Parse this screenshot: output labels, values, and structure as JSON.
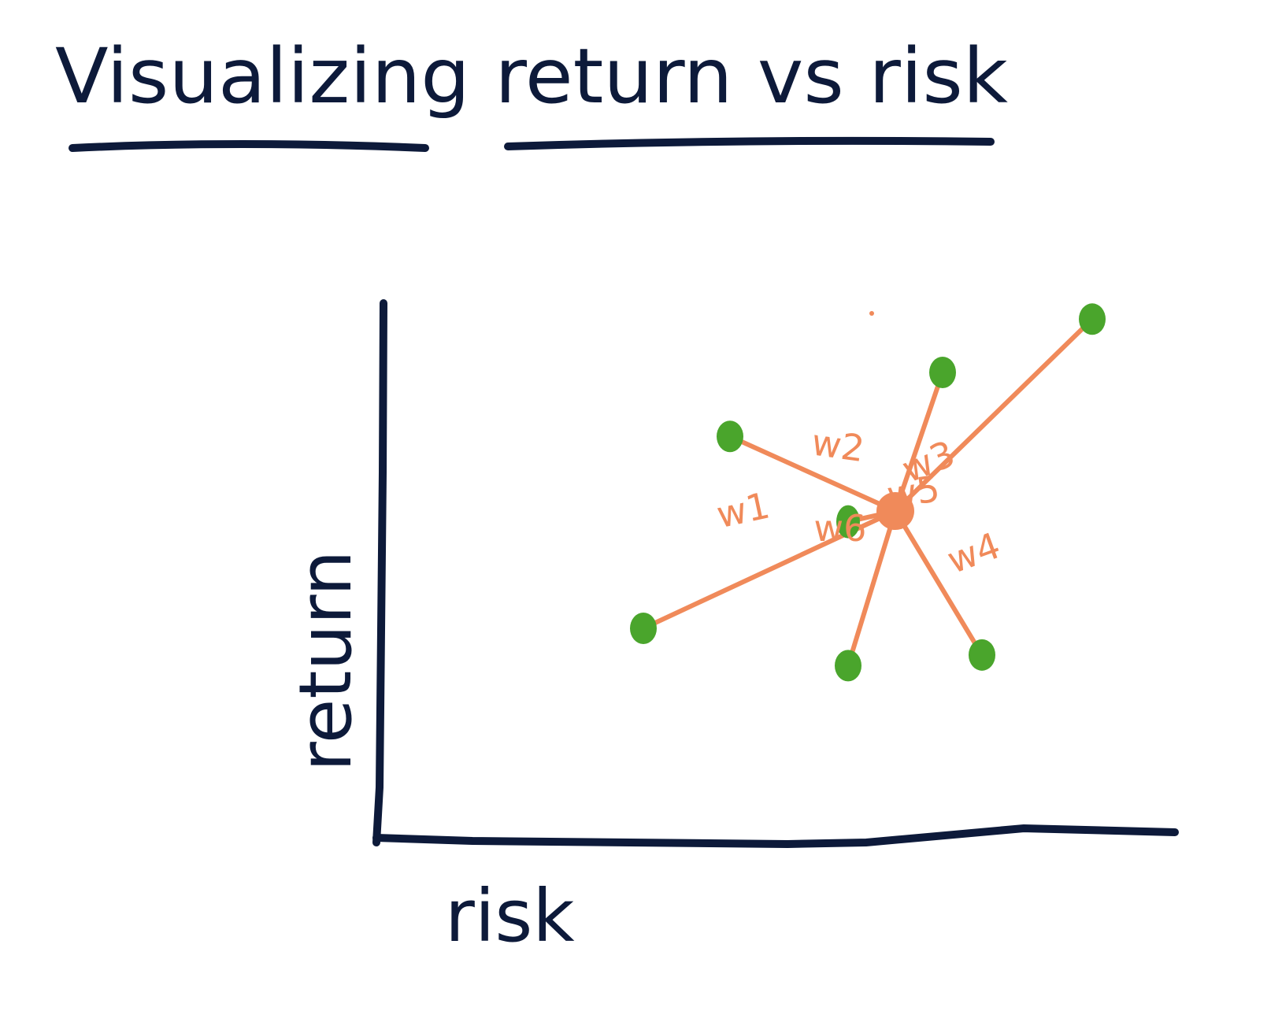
{
  "chart_data": {
    "type": "scatter",
    "title": "Visualizing return vs risk",
    "xlabel": "risk",
    "ylabel": "return",
    "xlim": [
      0,
      100
    ],
    "ylim": [
      0,
      100
    ],
    "grid": false,
    "portfolio": {
      "x": 65,
      "y": 61
    },
    "assets": [
      {
        "label": "w1",
        "x": 33,
        "y": 39
      },
      {
        "label": "w2",
        "x": 44,
        "y": 75
      },
      {
        "label": "w3",
        "x": 71,
        "y": 87
      },
      {
        "label": "w4",
        "x": 90,
        "y": 97
      },
      {
        "label": "w5",
        "x": 76,
        "y": 34
      },
      {
        "label": "w6",
        "x": 59,
        "y": 32
      }
    ],
    "extra_points": [
      {
        "x": 59,
        "y": 59
      }
    ]
  },
  "colors": {
    "ink": "#0d1a3a",
    "line": "#f08a5a",
    "asset": "#4aa52c",
    "portfolio": "#f08a5a"
  }
}
